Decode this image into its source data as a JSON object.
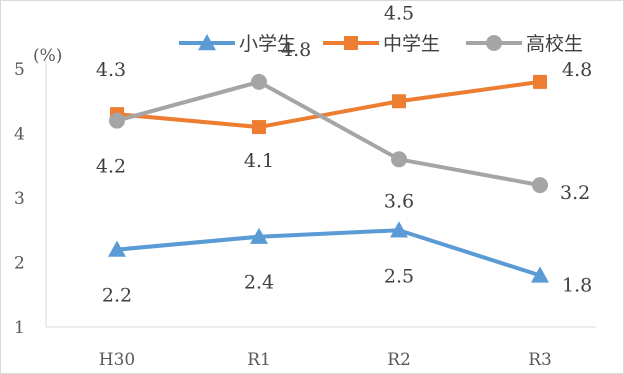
{
  "chart_data": {
    "type": "line",
    "title": "",
    "xlabel": "",
    "ylabel": "",
    "y_unit_label": "(%)",
    "categories": [
      "H30",
      "R1",
      "R2",
      "R3"
    ],
    "ylim": [
      1,
      5
    ],
    "yticks": [
      1,
      2,
      3,
      4,
      5
    ],
    "grid": false,
    "legend_position": "top",
    "series": [
      {
        "name": "小学生",
        "values": [
          2.2,
          2.4,
          2.5,
          1.8
        ],
        "labels": [
          "2.2",
          "2.4",
          "2.5",
          "1.8"
        ],
        "color": "#5b9bd5",
        "marker": "triangle"
      },
      {
        "name": "中学生",
        "values": [
          4.3,
          4.1,
          4.5,
          4.8
        ],
        "labels": [
          "4.3",
          "4.1",
          "4.5",
          "4.8"
        ],
        "color": "#ed7d31",
        "marker": "square"
      },
      {
        "name": "高校生",
        "values": [
          4.2,
          4.8,
          3.6,
          3.2
        ],
        "labels": [
          "4.2",
          "4.8",
          "3.6",
          "3.2"
        ],
        "color": "#a5a5a5",
        "marker": "circle"
      }
    ]
  }
}
